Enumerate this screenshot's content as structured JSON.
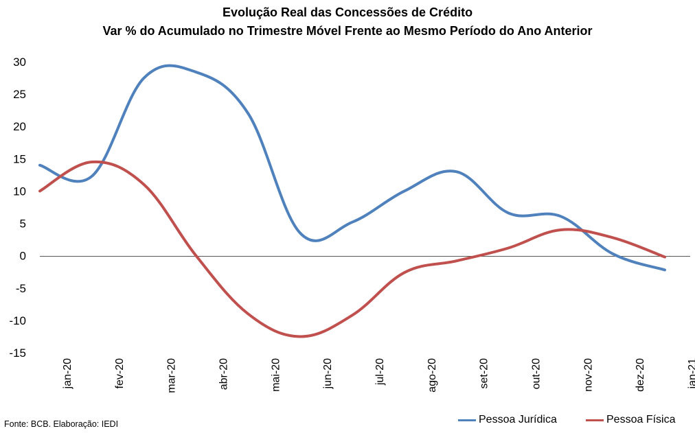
{
  "chart_data": {
    "type": "line",
    "title": "Evolução Real das Concessões de Crédito",
    "subtitle": "Var % do Acumulado no Trimestre Móvel Frente ao Mesmo Período do Ano Anterior",
    "categories": [
      "jan-20",
      "fev-20",
      "mar-20",
      "abr-20",
      "mai-20",
      "jun-20",
      "jul-20",
      "ago-20",
      "set-20",
      "out-20",
      "nov-20",
      "dez-20",
      "jan-21"
    ],
    "ylim": [
      -15,
      30
    ],
    "yticks": [
      30,
      25,
      20,
      15,
      10,
      5,
      0,
      -5,
      -10,
      -15
    ],
    "grid": false,
    "legend_position": "bottom-right",
    "series": [
      {
        "name": "Pessoa Jurídica",
        "color": "#4f81bd",
        "values": [
          14.0,
          12.3,
          27.5,
          28.4,
          22.0,
          3.5,
          5.2,
          10.0,
          13.0,
          6.6,
          6.1,
          0.3,
          -2.2
        ]
      },
      {
        "name": "Pessoa Física",
        "color": "#c0504d",
        "values": [
          10.0,
          14.5,
          11.0,
          0.0,
          -9.0,
          -12.5,
          -9.2,
          -2.6,
          -0.8,
          1.2,
          4.0,
          2.8,
          -0.2
        ]
      }
    ]
  },
  "footer": {
    "source": "Fonte:  BCB. Elaboração: IEDI"
  }
}
